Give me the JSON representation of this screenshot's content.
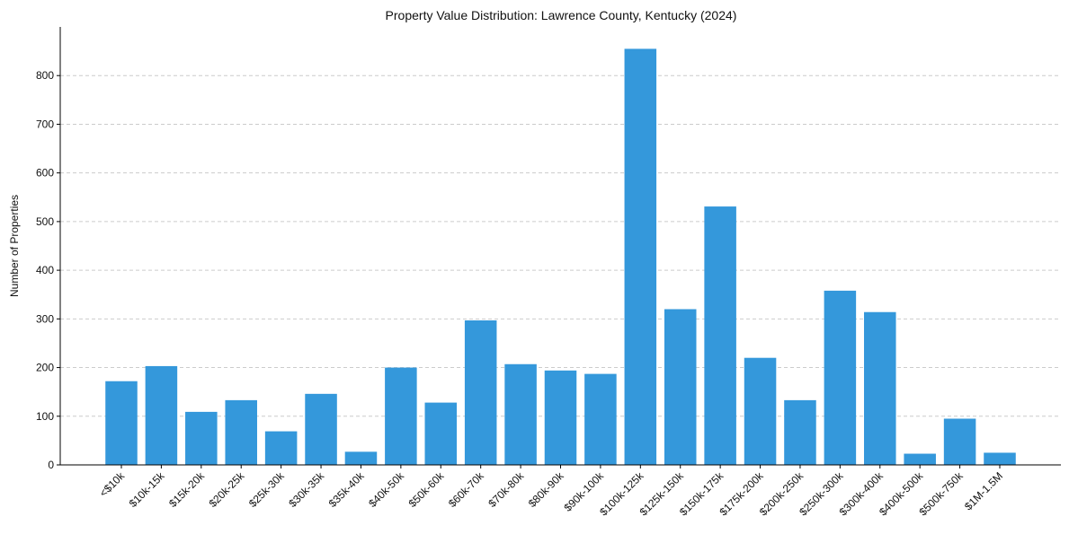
{
  "chart_data": {
    "type": "bar",
    "title": "Property Value Distribution: Lawrence County, Kentucky (2024)",
    "xlabel": "",
    "ylabel": "Number of Properties",
    "ylim": [
      0,
      900
    ],
    "yticks": [
      0,
      100,
      200,
      300,
      400,
      500,
      600,
      700,
      800
    ],
    "grid": "y-dashed",
    "bar_color": "#3498db",
    "categories": [
      "<$10k",
      "$10k-15k",
      "$15k-20k",
      "$20k-25k",
      "$25k-30k",
      "$30k-35k",
      "$35k-40k",
      "$40k-50k",
      "$50k-60k",
      "$60k-70k",
      "$70k-80k",
      "$80k-90k",
      "$90k-100k",
      "$100k-125k",
      "$125k-150k",
      "$150k-175k",
      "$175k-200k",
      "$200k-250k",
      "$250k-300k",
      "$300k-400k",
      "$400k-500k",
      "$500k-750k",
      "$1M-1.5M"
    ],
    "values": [
      172,
      203,
      109,
      133,
      69,
      146,
      27,
      200,
      128,
      297,
      207,
      194,
      187,
      855,
      320,
      531,
      220,
      133,
      358,
      314,
      23,
      95,
      25
    ]
  }
}
